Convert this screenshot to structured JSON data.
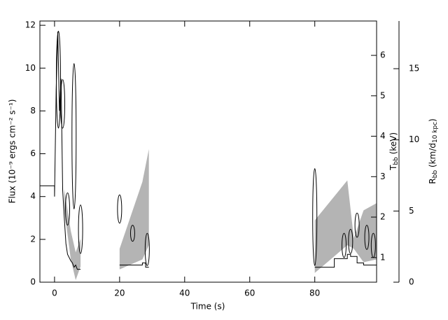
{
  "chart_data": {
    "type": "line",
    "xlabel": "Time (s)",
    "ylabel": "Flux (10⁻⁹ ergs cm⁻² s⁻¹)",
    "y2label": {
      "main": "T",
      "sub": "bb",
      "rest": " (keV)"
    },
    "y3label": {
      "main": "R",
      "sub": "bb",
      "rest": " (km/d",
      "sub2": "10 kpc",
      "end": ")"
    },
    "xlim": [
      -4.5,
      99
    ],
    "xticks": [
      0,
      20,
      40,
      60,
      80
    ],
    "ylim": [
      0,
      12.2
    ],
    "yticks": [
      0,
      2,
      4,
      6,
      8,
      10,
      12
    ],
    "y2lim": [
      0.39,
      6.85
    ],
    "y2ticks": [
      1,
      2,
      3,
      4,
      5,
      6
    ],
    "y3lim": [
      0,
      18.35
    ],
    "y3ticks": [
      0,
      5,
      10,
      15
    ],
    "flux": {
      "color": "#000000",
      "x": [
        -4.5,
        0,
        0,
        0.5,
        1,
        1.5,
        2,
        2.5,
        3,
        3.5,
        4,
        5,
        5.5,
        6,
        6.5,
        7,
        8,
        null,
        20,
        27,
        27,
        28,
        28,
        29,
        null,
        80,
        86,
        86,
        90,
        90,
        91,
        91,
        93,
        93,
        95,
        95,
        99
      ],
      "y": [
        4.5,
        4.5,
        4.0,
        9,
        11.7,
        8,
        9.5,
        4.3,
        3,
        1.8,
        1.3,
        1.0,
        0.9,
        0.7,
        0.8,
        0.6,
        0.6,
        null,
        0.8,
        0.8,
        0.9,
        0.9,
        0.7,
        0.7,
        null,
        0.7,
        0.7,
        1.1,
        1.1,
        1.3,
        1.3,
        1.2,
        1.2,
        0.9,
        0.9,
        0.8,
        0.8
      ]
    },
    "temperature": {
      "color": "#000000",
      "x": [
        1.2,
        2.5,
        4,
        6,
        8,
        20,
        24,
        28.5,
        80,
        89,
        91,
        93,
        96,
        98
      ],
      "y": [
        5.4,
        4.8,
        2.2,
        4.0,
        1.7,
        2.2,
        1.6,
        1.2,
        2.0,
        1.3,
        1.4,
        1.8,
        1.5,
        1.3
      ],
      "yerr": [
        1.2,
        0.6,
        0.4,
        1.8,
        0.6,
        0.35,
        0.2,
        0.4,
        1.2,
        0.3,
        0.3,
        0.3,
        0.3,
        0.3
      ]
    },
    "radius_band": {
      "color": "#b4b4b4",
      "segments": [
        {
          "x": [
            3,
            5,
            6.5,
            8
          ],
          "upper": [
            6.55,
            3.6,
            2.1,
            3.05
          ],
          "lower": [
            5.1,
            1.6,
            0.15,
            1.1
          ]
        },
        {
          "x": [
            20,
            27,
            29
          ],
          "upper": [
            2.35,
            7.05,
            9.35
          ],
          "lower": [
            0.9,
            1.6,
            2.6
          ]
        },
        {
          "x": [
            80,
            90,
            92,
            95,
            99
          ],
          "upper": [
            4.35,
            7.15,
            3.1,
            5.05,
            5.55
          ],
          "lower": [
            0.65,
            2.6,
            2.35,
            1.4,
            1.6
          ]
        }
      ]
    }
  }
}
